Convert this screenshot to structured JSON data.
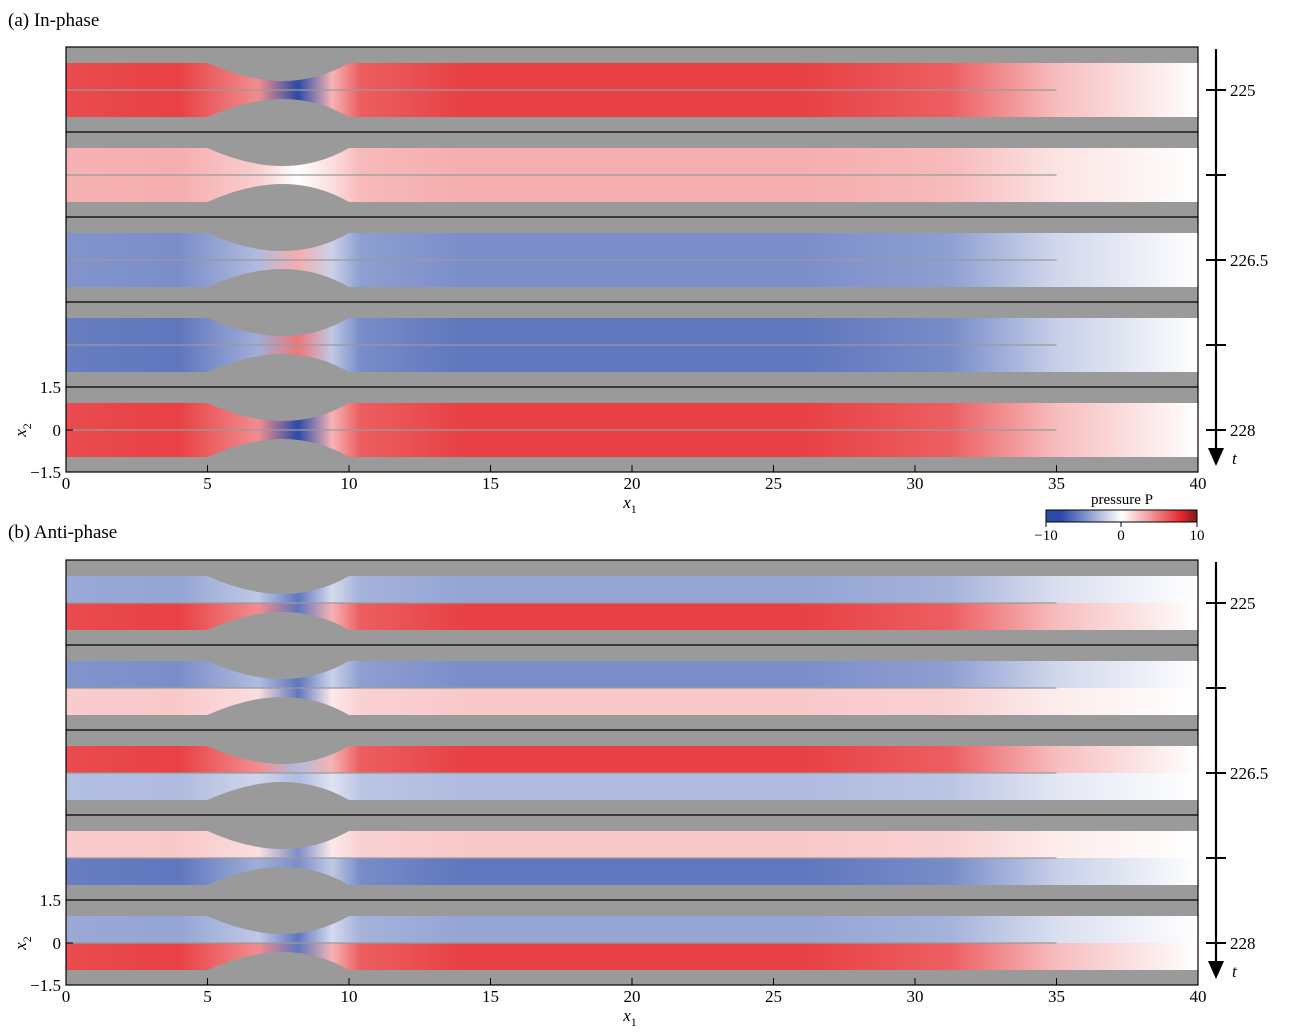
{
  "figure": {
    "panels": [
      {
        "label": "(a) In-phase",
        "time_ticks": [
          "225",
          "",
          "226.5",
          "",
          "228"
        ],
        "time_label": "t",
        "x_ticks": [
          "0",
          "5",
          "10",
          "15",
          "20",
          "25",
          "30",
          "35",
          "40"
        ],
        "x_label": "x1",
        "y_ticks": [
          "1.5",
          "0",
          "−1.5"
        ],
        "y_label": "x2",
        "frames": [
          {
            "upper_channel_pressure": 7,
            "lower_channel_pressure": 7,
            "throat_pressure": -8
          },
          {
            "upper_channel_pressure": 3,
            "lower_channel_pressure": 3,
            "throat_pressure": 0
          },
          {
            "upper_channel_pressure": -5,
            "lower_channel_pressure": -5,
            "throat_pressure": 3
          },
          {
            "upper_channel_pressure": -6,
            "lower_channel_pressure": -6,
            "throat_pressure": 5
          },
          {
            "upper_channel_pressure": 7,
            "lower_channel_pressure": 7,
            "throat_pressure": -8
          }
        ]
      },
      {
        "label": "(b) Anti-phase",
        "time_ticks": [
          "225",
          "",
          "226.5",
          "",
          "228"
        ],
        "time_label": "t",
        "x_ticks": [
          "0",
          "5",
          "10",
          "15",
          "20",
          "25",
          "30",
          "35",
          "40"
        ],
        "x_label": "x1",
        "y_ticks": [
          "1.5",
          "0",
          "−1.5"
        ],
        "y_label": "x2",
        "frames": [
          {
            "upper_channel_pressure": -4,
            "lower_channel_pressure": 7,
            "throat_pressure": -6
          },
          {
            "upper_channel_pressure": -5,
            "lower_channel_pressure": 2,
            "throat_pressure": -6
          },
          {
            "upper_channel_pressure": 7,
            "lower_channel_pressure": -3,
            "throat_pressure": -3
          },
          {
            "upper_channel_pressure": 2,
            "lower_channel_pressure": -6,
            "throat_pressure": -5
          },
          {
            "upper_channel_pressure": -4,
            "lower_channel_pressure": 7,
            "throat_pressure": -6
          }
        ]
      }
    ],
    "colorbar": {
      "label": "pressure P",
      "ticks": [
        "−10",
        "0",
        "10"
      ],
      "range": [
        -10,
        10
      ]
    },
    "colors": {
      "wall": "#9a9a9a",
      "negative": "#2b4aa8",
      "neutral": "#ffffff",
      "positive": "#e5262a",
      "extreme_positive": "#7a1a1a"
    }
  }
}
